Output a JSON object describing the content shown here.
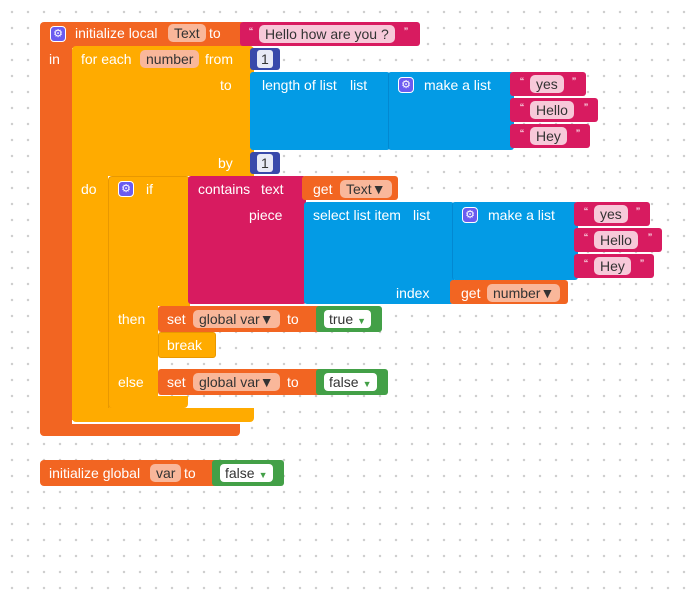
{
  "local_block": {
    "initialize_label": "initialize local",
    "var_name": "Text",
    "to_label": "to",
    "value": "Hello how are you ?",
    "in_label": "in"
  },
  "foreach_block": {
    "label": "for each",
    "var_name": "number",
    "from_label": "from",
    "from_value": "1",
    "to_label": "to",
    "by_label": "by",
    "by_value": "1",
    "do_label": "do"
  },
  "length_block": {
    "label": "length of list",
    "list_label": "list",
    "make_list_label": "make a list",
    "items": [
      "yes",
      "Hello",
      "Hey"
    ]
  },
  "if_block": {
    "if_label": "if",
    "then_label": "then",
    "else_label": "else"
  },
  "contains_block": {
    "label": "contains",
    "text_label": "text",
    "get_label": "get",
    "get_var": "Text",
    "piece_label": "piece"
  },
  "select_block": {
    "label": "select list item",
    "list_label": "list",
    "make_list_label": "make a list",
    "items": [
      "yes",
      "Hello",
      "Hey"
    ],
    "index_label": "index",
    "get_label": "get",
    "get_var": "number"
  },
  "set_then": {
    "set_label": "set",
    "var": "global var",
    "to_label": "to",
    "value": "true",
    "break_label": "break"
  },
  "set_else": {
    "set_label": "set",
    "var": "global var",
    "to_label": "to",
    "value": "false"
  },
  "global_block": {
    "label": "initialize global",
    "var_name": "var",
    "to_label": "to",
    "value": "false"
  },
  "colors": {
    "variables": "#f26522",
    "control": "#ffab00",
    "text": "#d81b60",
    "lists": "#039be5",
    "math": "#3949ab",
    "logic": "#43a047"
  }
}
